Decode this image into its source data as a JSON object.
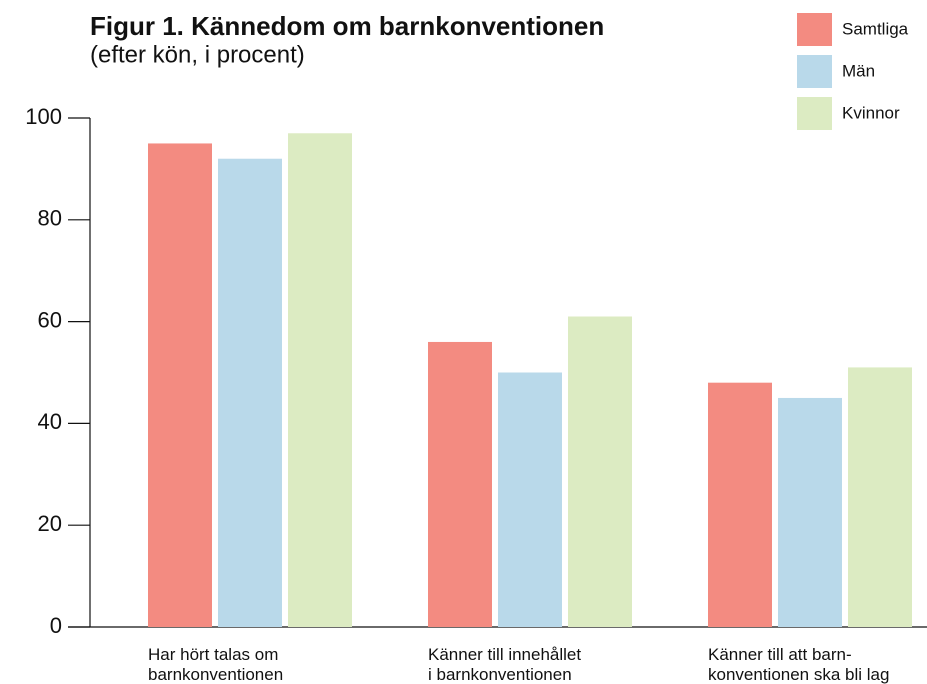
{
  "chart_data": {
    "type": "bar",
    "title": "Figur 1. Kännedom om barnkonventionen",
    "subtitle": "(efter kön, i procent)",
    "categories": [
      "Har hört talas om\nbarnkonventionen",
      "Känner till innehållet\ni barnkonventionen",
      "Känner till att barn-\nkonventionen ska bli lag"
    ],
    "series": [
      {
        "name": "Samtliga",
        "color": "#f38b81",
        "values": [
          95,
          56,
          48
        ]
      },
      {
        "name": "Män",
        "color": "#b9d9ea",
        "values": [
          92,
          50,
          45
        ]
      },
      {
        "name": "Kvinnor",
        "color": "#dcebc2",
        "values": [
          97,
          61,
          51
        ]
      }
    ],
    "ylim": [
      0,
      100
    ],
    "yticks": [
      0,
      20,
      40,
      60,
      80,
      100
    ],
    "legend": "top-right"
  }
}
